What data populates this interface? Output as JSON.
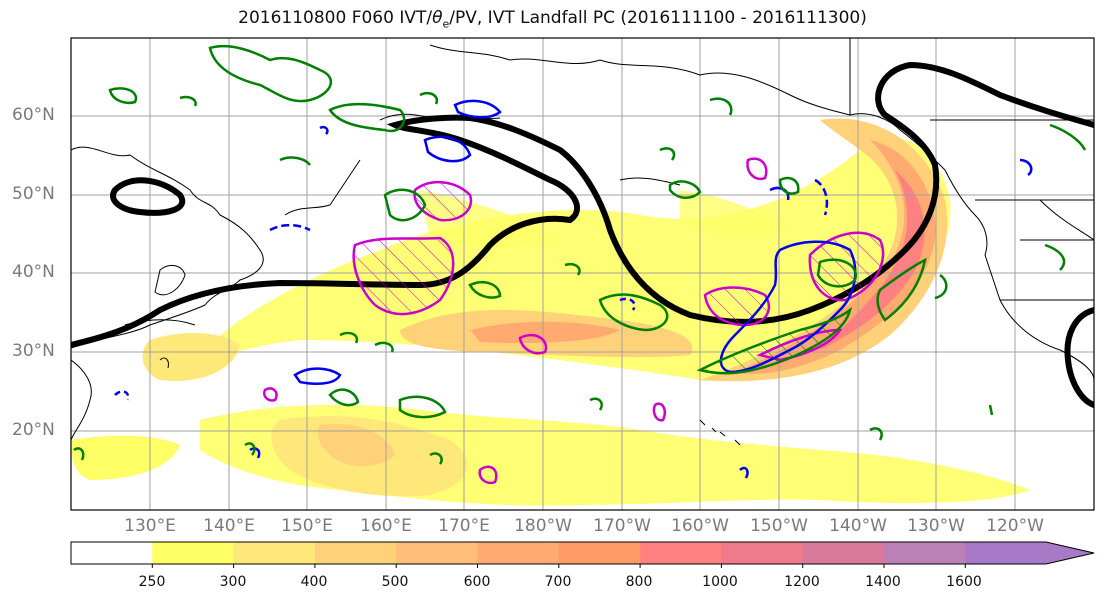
{
  "title": {
    "prefix": "2016110800 F060 IVT/",
    "theta": "θ",
    "sub": "e",
    "suffix": "/PV, IVT Landfall PC (2016111100 - 2016111300)"
  },
  "lat_labels": [
    "60°N",
    "50°N",
    "40°N",
    "30°N",
    "20°N"
  ],
  "lon_labels": [
    "130°E",
    "140°E",
    "150°E",
    "160°E",
    "170°E",
    "180°W",
    "170°W",
    "160°W",
    "150°W",
    "140°W",
    "130°W",
    "120°W"
  ],
  "colorbar": {
    "ticks": [
      "250",
      "300",
      "400",
      "500",
      "600",
      "700",
      "800",
      "1000",
      "1200",
      "1400",
      "1600"
    ],
    "colors": [
      "#ffffff",
      "#ffff66",
      "#ffe87a",
      "#ffd27a",
      "#ffbf7a",
      "#ffaa70",
      "#ff9966",
      "#ff8080",
      "#ee7a8a",
      "#d97a9a",
      "#bb80b6",
      "#a67ac6"
    ]
  },
  "contour_colors": {
    "theta_e": "#008000",
    "pv_magenta": "#cc00cc",
    "pv_blue": "#0000ee",
    "ivt_pc": "#000000"
  }
}
